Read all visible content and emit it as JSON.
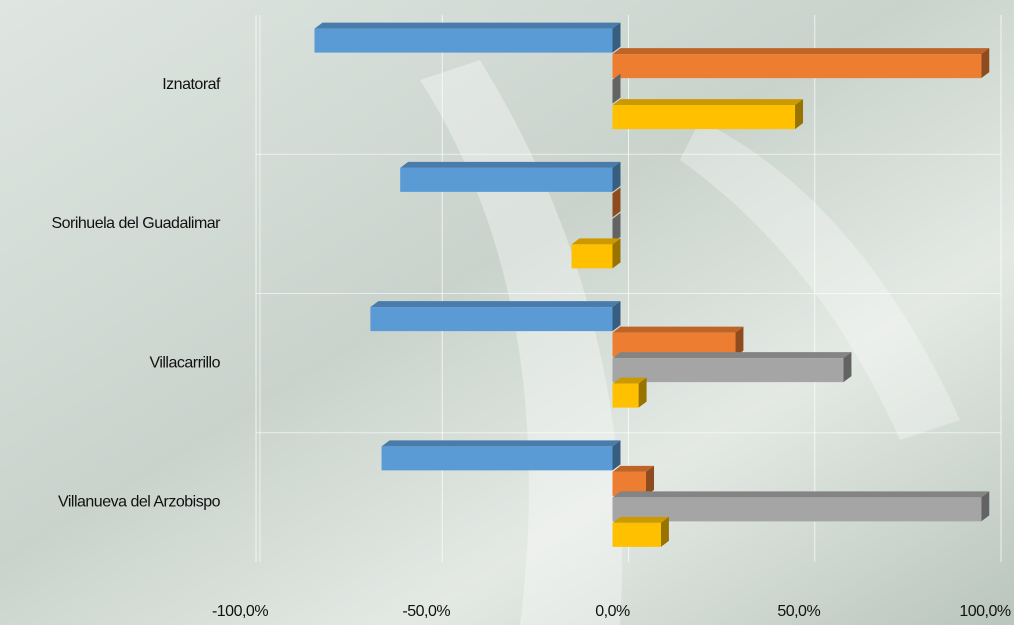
{
  "chart_data": {
    "type": "bar3d_horizontal",
    "categories": [
      "Iznatoraf",
      "Sorihuela del Guadalimar",
      "Villacarrillo",
      "Villanueva del Arzobispo"
    ],
    "series": [
      {
        "color": "#5b9bd5",
        "values": [
          -80,
          -57,
          -65,
          -62
        ]
      },
      {
        "color": "#ed7d31",
        "values": [
          99,
          0,
          33,
          9
        ]
      },
      {
        "color": "#a5a5a5",
        "values": [
          0,
          0,
          62,
          99
        ]
      },
      {
        "color": "#ffc000",
        "values": [
          49,
          -11,
          7,
          13
        ]
      }
    ],
    "xlim": [
      -100,
      100
    ],
    "xticks": [
      {
        "value": -100,
        "label": "-100,0%"
      },
      {
        "value": -50,
        "label": "-50,0%"
      },
      {
        "value": 0,
        "label": "0,0%"
      },
      {
        "value": 50,
        "label": "50,0%"
      },
      {
        "value": 100,
        "label": "100,0%"
      }
    ],
    "grid": true
  }
}
